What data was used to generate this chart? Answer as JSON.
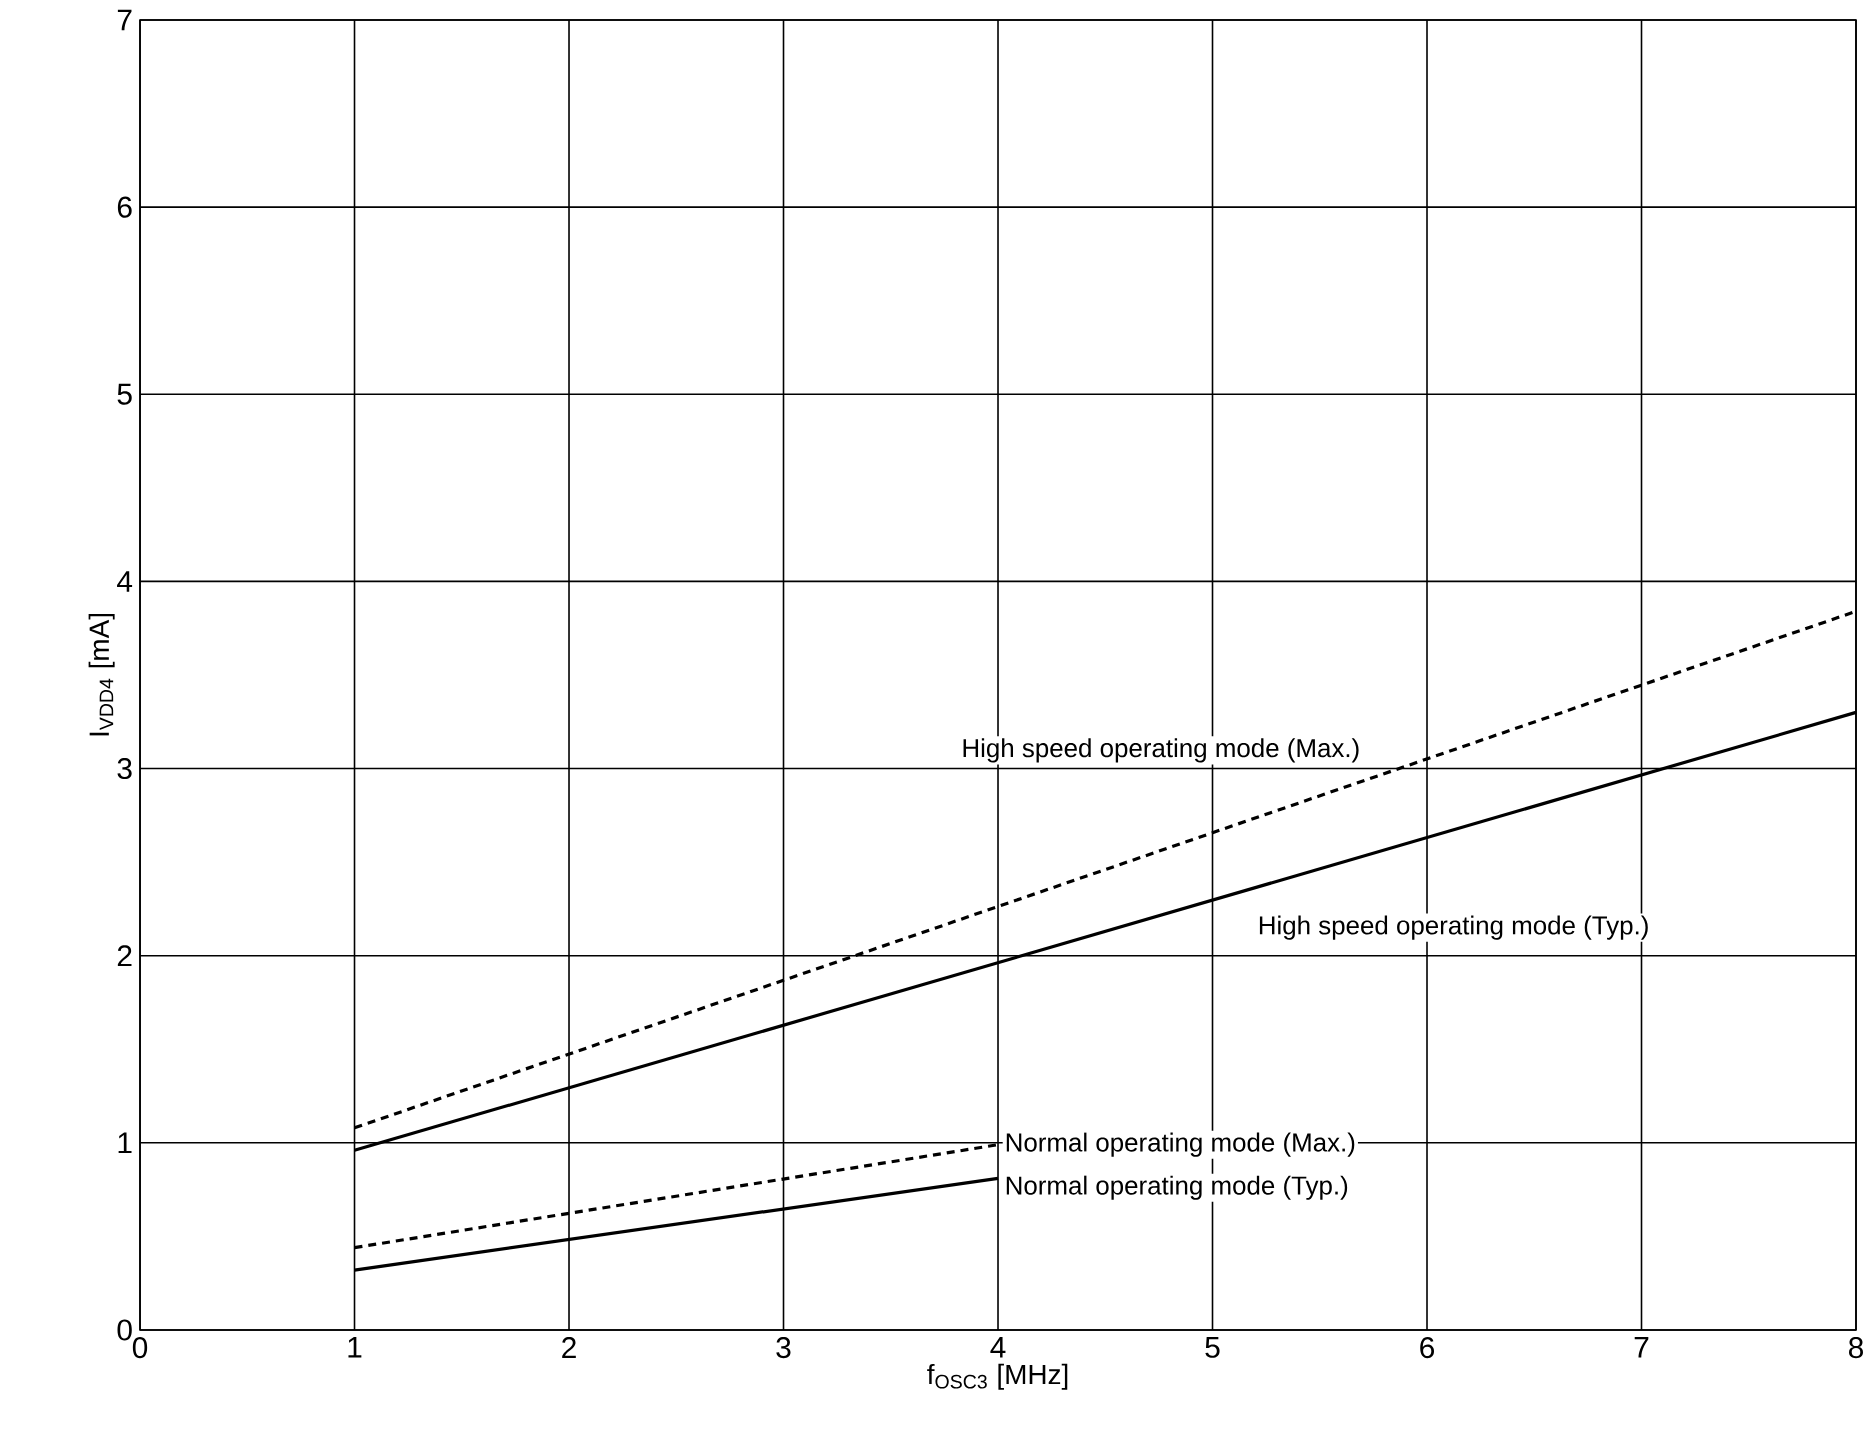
{
  "chart_data": {
    "type": "line",
    "xlabel": "f$_{OSC3}$ [MHz]",
    "ylabel": "I$_{VDD4}$ [mA]",
    "xlim": [
      0,
      8
    ],
    "ylim": [
      0,
      7
    ],
    "xticks": [
      0,
      1,
      2,
      3,
      4,
      5,
      6,
      7,
      8
    ],
    "yticks": [
      0,
      1,
      2,
      3,
      4,
      5,
      6,
      7
    ],
    "grid": true,
    "legend": false,
    "series": [
      {
        "name": "High speed operating mode (Max.)",
        "color": "#000000",
        "line_style": "dashed",
        "x": [
          1,
          8
        ],
        "values": [
          1.08,
          3.84
        ]
      },
      {
        "name": "High speed operating mode (Typ.)",
        "color": "#000000",
        "line_style": "solid",
        "x": [
          1,
          8
        ],
        "values": [
          0.96,
          3.3
        ]
      },
      {
        "name": "Normal operating mode (Max.)",
        "color": "#000000",
        "line_style": "dashed",
        "x": [
          1,
          4
        ],
        "values": [
          0.44,
          0.99
        ]
      },
      {
        "name": "Normal operating mode (Typ.)",
        "color": "#000000",
        "line_style": "solid",
        "x": [
          1,
          4
        ],
        "values": [
          0.32,
          0.81
        ]
      }
    ]
  }
}
